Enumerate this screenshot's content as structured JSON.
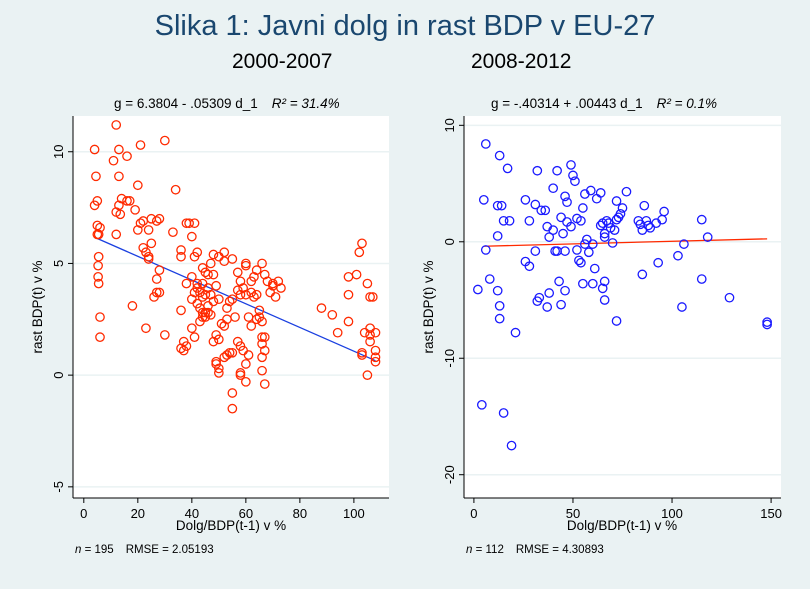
{
  "figure_title": "Slika 1: Javni dolg in rast BDP v EU-27",
  "colors": {
    "background": "#eaf2f3",
    "title": "#1a476f",
    "left_points": "#ff2a00",
    "left_fit": "#1a3fe0",
    "right_points": "#1a1aff",
    "right_fit": "#ff2a00"
  },
  "chart_data": [
    {
      "type": "scatter",
      "title": "2000-2007",
      "annotation": "g = 6.3804 - .05309 d_1",
      "r2_label": "R² = 31.4%",
      "xlabel": "Dolg/BDP(t-1) v %",
      "ylabel": "rast BDP(t) v %",
      "xlim": [
        -4,
        113
      ],
      "ylim": [
        -5.5,
        11.6
      ],
      "xticks": [
        0,
        20,
        40,
        60,
        80,
        100
      ],
      "yticks": [
        -5,
        0,
        5,
        10
      ],
      "grid": true,
      "footer_n": "195",
      "footer_rmse": "RMSE =  2.05193",
      "fit": {
        "intercept": 6.3804,
        "slope": -0.05309,
        "x_range": [
          5,
          108
        ]
      },
      "points": [
        [
          4,
          10.1
        ],
        [
          4.5,
          8.9
        ],
        [
          4,
          7.6
        ],
        [
          5,
          7.8
        ],
        [
          5,
          6.7
        ],
        [
          5,
          6.3
        ],
        [
          5.5,
          6.3
        ],
        [
          6,
          6.6
        ],
        [
          5.5,
          5.3
        ],
        [
          5.3,
          4.9
        ],
        [
          5.3,
          4.4
        ],
        [
          5.5,
          4.1
        ],
        [
          6,
          2.6
        ],
        [
          6,
          1.7
        ],
        [
          11,
          9.6
        ],
        [
          12,
          11.2
        ],
        [
          13,
          10.1
        ],
        [
          13,
          8.9
        ],
        [
          12,
          7.3
        ],
        [
          13,
          7.6
        ],
        [
          13.5,
          7.2
        ],
        [
          14,
          7.9
        ],
        [
          16,
          9.8
        ],
        [
          16,
          7.8
        ],
        [
          17,
          7.8
        ],
        [
          18,
          3.1
        ],
        [
          12,
          6.3
        ],
        [
          21,
          10.3
        ],
        [
          20,
          8.5
        ],
        [
          19,
          7.4
        ],
        [
          20,
          6.5
        ],
        [
          21,
          6.8
        ],
        [
          22,
          6.9
        ],
        [
          22,
          5.7
        ],
        [
          23,
          5.5
        ],
        [
          24,
          5.2
        ],
        [
          24,
          5.3
        ],
        [
          25,
          5.9
        ],
        [
          24,
          6.5
        ],
        [
          23,
          2.1
        ],
        [
          26,
          3.5
        ],
        [
          27,
          3.7
        ],
        [
          28,
          4.7
        ],
        [
          28,
          7.0
        ],
        [
          25,
          7.0
        ],
        [
          27,
          6.9
        ],
        [
          27,
          4.3
        ],
        [
          28,
          3.7
        ],
        [
          30,
          1.8
        ],
        [
          30,
          10.5
        ],
        [
          34,
          8.3
        ],
        [
          33,
          6.4
        ],
        [
          36,
          5.6
        ],
        [
          36,
          5.3
        ],
        [
          38,
          6.8
        ],
        [
          39,
          6.8
        ],
        [
          41,
          6.8
        ],
        [
          40,
          6.2
        ],
        [
          41,
          5.3
        ],
        [
          42,
          5.5
        ],
        [
          45,
          4.6
        ],
        [
          46,
          4.5
        ],
        [
          44,
          4.8
        ],
        [
          36,
          2.9
        ],
        [
          37,
          1.5
        ],
        [
          38,
          1.3
        ],
        [
          36,
          1.2
        ],
        [
          37,
          1.1
        ],
        [
          40,
          3.4
        ],
        [
          41,
          3.7
        ],
        [
          42,
          3.2
        ],
        [
          43,
          3.0
        ],
        [
          44,
          3.5
        ],
        [
          44,
          2.8
        ],
        [
          45,
          2.6
        ],
        [
          46,
          2.8
        ],
        [
          47,
          2.7
        ],
        [
          38,
          4.1
        ],
        [
          40,
          4.4
        ],
        [
          42,
          4.1
        ],
        [
          42,
          3.9
        ],
        [
          43,
          3.7
        ],
        [
          44,
          4.1
        ],
        [
          45,
          3.6
        ],
        [
          46,
          3.9
        ],
        [
          47,
          3.6
        ],
        [
          48,
          4.5
        ],
        [
          49,
          4.0
        ],
        [
          50,
          3.4
        ],
        [
          48,
          3.3
        ],
        [
          40,
          2.1
        ],
        [
          41,
          1.7
        ],
        [
          43,
          2.4
        ],
        [
          44,
          2.6
        ],
        [
          45,
          2.8
        ],
        [
          46,
          3.1
        ],
        [
          48,
          1.5
        ],
        [
          49,
          1.8
        ],
        [
          50,
          1.6
        ],
        [
          51,
          2.3
        ],
        [
          52,
          2.2
        ],
        [
          53,
          2.5
        ],
        [
          49,
          0.6
        ],
        [
          49,
          0.5
        ],
        [
          50,
          0.3
        ],
        [
          50,
          0.1
        ],
        [
          52,
          0.8
        ],
        [
          53,
          0.9
        ],
        [
          54,
          1.0
        ],
        [
          55,
          1.0
        ],
        [
          55,
          -0.8
        ],
        [
          55,
          -1.5
        ],
        [
          57,
          1.5
        ],
        [
          58,
          1.3
        ],
        [
          59,
          1.1
        ],
        [
          60,
          0.5
        ],
        [
          58,
          0.1
        ],
        [
          58,
          0.0
        ],
        [
          60,
          -0.3
        ],
        [
          61,
          0.9
        ],
        [
          53,
          3.0
        ],
        [
          54,
          3.3
        ],
        [
          55,
          3.4
        ],
        [
          56,
          2.6
        ],
        [
          57,
          3.8
        ],
        [
          58,
          3.6
        ],
        [
          59,
          3.9
        ],
        [
          60,
          3.6
        ],
        [
          61,
          2.6
        ],
        [
          62,
          2.2
        ],
        [
          62,
          3.7
        ],
        [
          63,
          3.5
        ],
        [
          64,
          3.6
        ],
        [
          64,
          2.5
        ],
        [
          65,
          2.6
        ],
        [
          65,
          2.9
        ],
        [
          66,
          2.4
        ],
        [
          66,
          1.7
        ],
        [
          66,
          1.4
        ],
        [
          67,
          1.7
        ],
        [
          67,
          1.1
        ],
        [
          66,
          0.8
        ],
        [
          66,
          0.2
        ],
        [
          67,
          -0.4
        ],
        [
          57,
          4.6
        ],
        [
          58,
          4.2
        ],
        [
          60,
          4.9
        ],
        [
          62,
          4.2
        ],
        [
          63,
          4.4
        ],
        [
          64,
          4.7
        ],
        [
          66,
          5.0
        ],
        [
          67,
          4.5
        ],
        [
          68,
          4.2
        ],
        [
          69,
          3.7
        ],
        [
          70,
          4.0
        ],
        [
          71,
          3.5
        ],
        [
          72,
          4.2
        ],
        [
          70,
          4.1
        ],
        [
          73,
          3.9
        ],
        [
          55,
          5.2
        ],
        [
          60,
          5.0
        ],
        [
          52,
          5.5
        ],
        [
          48,
          5.4
        ],
        [
          50,
          5.3
        ],
        [
          52,
          5.1
        ],
        [
          47,
          5.0
        ],
        [
          88,
          3.0
        ],
        [
          92,
          2.7
        ],
        [
          94,
          1.9
        ],
        [
          98,
          2.4
        ],
        [
          98,
          4.4
        ],
        [
          98,
          3.6
        ],
        [
          101,
          4.5
        ],
        [
          102,
          5.5
        ],
        [
          103,
          5.9
        ],
        [
          103,
          1.0
        ],
        [
          103,
          0.9
        ],
        [
          104,
          1.9
        ],
        [
          105,
          4.1
        ],
        [
          105,
          0.0
        ],
        [
          106,
          3.5
        ],
        [
          106,
          2.1
        ],
        [
          106,
          1.8
        ],
        [
          106,
          1.5
        ],
        [
          107,
          3.5
        ],
        [
          108,
          1.1
        ],
        [
          108,
          0.8
        ],
        [
          108,
          1.9
        ],
        [
          108,
          0.6
        ]
      ]
    },
    {
      "type": "scatter",
      "title": "2008-2012",
      "annotation": "g = -.40314 + .00443 d_1",
      "r2_label": "R² = 0.1%",
      "xlabel": "Dolg/BDP(t-1) v %",
      "ylabel": "rast BDP(t) v %",
      "xlim": [
        -5,
        155
      ],
      "ylim": [
        -22,
        10.8
      ],
      "xticks": [
        0,
        50,
        100,
        150
      ],
      "yticks": [
        -20,
        -10,
        0,
        10
      ],
      "grid": true,
      "footer_n": "112",
      "footer_rmse": "RMSE =  4.30893",
      "fit": {
        "intercept": -0.40314,
        "slope": 0.00443,
        "x_range": [
          5,
          148
        ]
      },
      "points": [
        [
          6,
          8.4
        ],
        [
          13,
          7.4
        ],
        [
          17,
          6.3
        ],
        [
          5,
          3.6
        ],
        [
          6,
          -0.7
        ],
        [
          12,
          3.1
        ],
        [
          14,
          3.1
        ],
        [
          15,
          1.8
        ],
        [
          18,
          1.8
        ],
        [
          12,
          0.5
        ],
        [
          26,
          3.6
        ],
        [
          28,
          1.8
        ],
        [
          31,
          3.2
        ],
        [
          32,
          6.1
        ],
        [
          34,
          2.7
        ],
        [
          36,
          2.7
        ],
        [
          37,
          1.3
        ],
        [
          38,
          0.4
        ],
        [
          40,
          4.6
        ],
        [
          40,
          1.0
        ],
        [
          41,
          -0.8
        ],
        [
          42,
          6.1
        ],
        [
          44,
          2.1
        ],
        [
          45,
          0.7
        ],
        [
          46,
          3.9
        ],
        [
          47,
          3.4
        ],
        [
          47,
          1.7
        ],
        [
          49,
          6.6
        ],
        [
          49,
          1.3
        ],
        [
          50,
          5.7
        ],
        [
          51,
          5.2
        ],
        [
          52,
          2.0
        ],
        [
          52,
          -0.7
        ],
        [
          54,
          1.8
        ],
        [
          55,
          2.9
        ],
        [
          56,
          4.1
        ],
        [
          57,
          0.2
        ],
        [
          59,
          4.4
        ],
        [
          60,
          -0.2
        ],
        [
          62,
          3.7
        ],
        [
          64,
          4.2
        ],
        [
          64,
          1.4
        ],
        [
          65,
          1.6
        ],
        [
          66,
          0.7
        ],
        [
          66,
          0.4
        ],
        [
          67,
          1.8
        ],
        [
          68,
          1.6
        ],
        [
          69,
          1.2
        ],
        [
          70,
          -0.1
        ],
        [
          71,
          1.0
        ],
        [
          72,
          3.5
        ],
        [
          72,
          1.9
        ],
        [
          73,
          2.1
        ],
        [
          74,
          2.4
        ],
        [
          75,
          2.9
        ],
        [
          77,
          4.3
        ],
        [
          83,
          1.8
        ],
        [
          84,
          1.5
        ],
        [
          85,
          1.0
        ],
        [
          86,
          3.1
        ],
        [
          87,
          1.8
        ],
        [
          88,
          1.4
        ],
        [
          89,
          1.2
        ],
        [
          92,
          1.6
        ],
        [
          95,
          1.9
        ],
        [
          96,
          2.6
        ],
        [
          115,
          1.9
        ],
        [
          118,
          0.4
        ],
        [
          26,
          -1.7
        ],
        [
          28,
          -2.1
        ],
        [
          31,
          -0.8
        ],
        [
          42,
          -0.8
        ],
        [
          46,
          -0.8
        ],
        [
          53,
          -1.6
        ],
        [
          54,
          -1.8
        ],
        [
          56,
          -0.2
        ],
        [
          58,
          -0.9
        ],
        [
          2,
          -4.1
        ],
        [
          8,
          -3.2
        ],
        [
          12,
          -4.2
        ],
        [
          13,
          -5.5
        ],
        [
          13,
          -6.6
        ],
        [
          21,
          -7.8
        ],
        [
          33,
          -4.8
        ],
        [
          32,
          -5.1
        ],
        [
          37,
          -5.6
        ],
        [
          38,
          -4.4
        ],
        [
          43,
          -3.4
        ],
        [
          44,
          -5.4
        ],
        [
          46,
          -4.2
        ],
        [
          55,
          -3.6
        ],
        [
          61,
          -2.3
        ],
        [
          60,
          -3.6
        ],
        [
          65,
          -4.0
        ],
        [
          66,
          -3.4
        ],
        [
          72,
          -6.8
        ],
        [
          66,
          -5.0
        ],
        [
          85,
          -2.8
        ],
        [
          93,
          -1.8
        ],
        [
          103,
          -1.2
        ],
        [
          106,
          -0.2
        ],
        [
          105,
          -5.6
        ],
        [
          115,
          -3.2
        ],
        [
          129,
          -4.8
        ],
        [
          148,
          -7.1
        ],
        [
          148,
          -6.9
        ],
        [
          4,
          -14.0
        ],
        [
          15,
          -14.7
        ],
        [
          19,
          -17.5
        ]
      ]
    }
  ]
}
